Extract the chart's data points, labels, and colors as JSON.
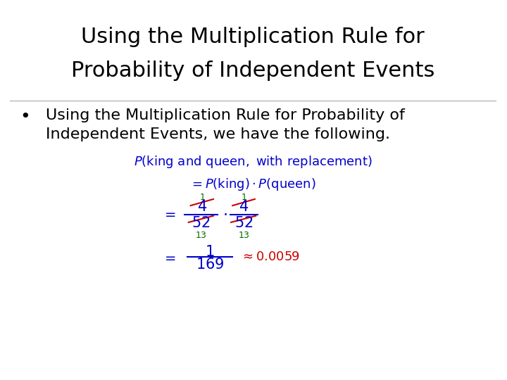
{
  "title_line1": "Using the Multiplication Rule for",
  "title_line2": "Probability of Independent Events",
  "bullet_text": "Using the Multiplication Rule for Probability of\nIndependent Events, we have the following.",
  "background_color": "#ffffff",
  "title_color": "#000000",
  "bullet_color": "#000000",
  "math_color_blue": "#0000CC",
  "math_color_red": "#CC0000",
  "math_color_dark_red": "#8B0000",
  "title_fontsize": 22,
  "bullet_fontsize": 16
}
